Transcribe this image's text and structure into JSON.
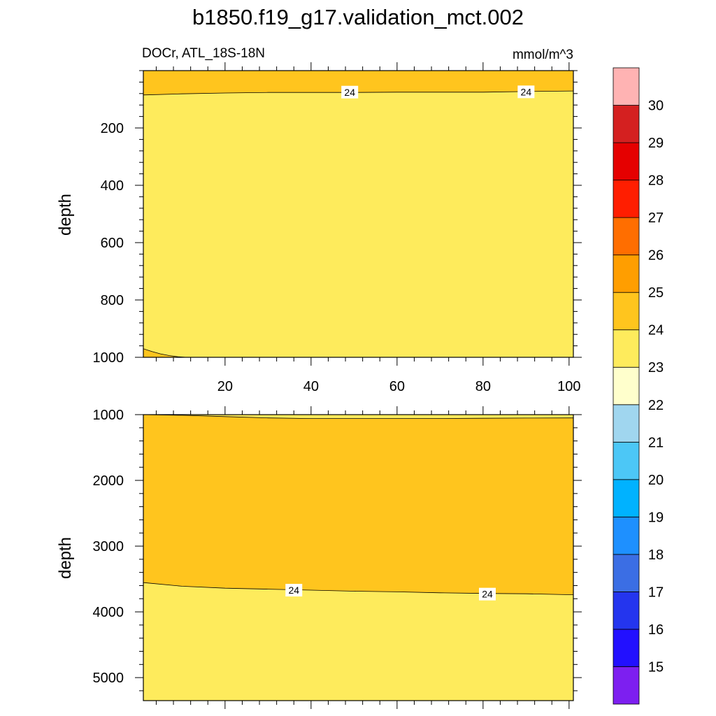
{
  "title": "b1850.f19_g17.validation_mct.002",
  "variable_label": "DOCr, ATL_18S-18N",
  "units_label": "mmol/m^3",
  "ylabel": "depth",
  "colors": {
    "fill_22_23": "#FFFFCC",
    "fill_23_24": "#FEEB5C",
    "fill_24_25": "#FFC51E",
    "contour_line": "#000000"
  },
  "chart_data": [
    {
      "type": "contour",
      "panel": "upper",
      "xlim": [
        1,
        101
      ],
      "ylim": [
        1000,
        0
      ],
      "xticks": [
        20,
        40,
        60,
        80,
        100
      ],
      "yticks": [
        200,
        400,
        600,
        800,
        1000
      ],
      "ylabel": "depth",
      "contour_lines": [
        {
          "level": 24,
          "x": [
            1,
            10,
            20,
            30,
            40,
            50,
            60,
            70,
            80,
            90,
            101
          ],
          "depth": [
            85,
            81,
            78,
            76,
            76,
            76,
            75,
            75,
            75,
            73,
            71
          ]
        },
        {
          "level": 24,
          "x": [
            1,
            3,
            5,
            7,
            9,
            11
          ],
          "depth": [
            970,
            980,
            988,
            994,
            998,
            1000
          ]
        }
      ],
      "contour_labels": [
        {
          "text": "24",
          "x": 49,
          "depth": 75
        },
        {
          "text": "24",
          "x": 90,
          "depth": 74
        }
      ]
    },
    {
      "type": "contour",
      "panel": "lower",
      "xlim": [
        1,
        101
      ],
      "ylim": [
        5350,
        1000
      ],
      "yticks": [
        1000,
        2000,
        3000,
        4000,
        5000
      ],
      "ylabel": "depth",
      "contour_lines": [
        {
          "level": 24,
          "x": [
            1,
            10,
            20,
            30,
            40,
            50,
            60,
            70,
            80,
            90,
            101
          ],
          "depth": [
            1000,
            1010,
            1030,
            1050,
            1060,
            1060,
            1060,
            1058,
            1055,
            1052,
            1050
          ]
        },
        {
          "level": 24,
          "x": [
            1,
            10,
            20,
            30,
            40,
            50,
            60,
            70,
            80,
            90,
            101
          ],
          "depth": [
            3555,
            3610,
            3640,
            3655,
            3670,
            3685,
            3695,
            3710,
            3720,
            3725,
            3740
          ]
        }
      ],
      "contour_labels": [
        {
          "text": "24",
          "x": 36,
          "depth": 3670
        },
        {
          "text": "24",
          "x": 81,
          "depth": 3730
        }
      ]
    }
  ],
  "colorbar": {
    "levels": [
      "15",
      "16",
      "17",
      "18",
      "19",
      "20",
      "21",
      "22",
      "23",
      "24",
      "25",
      "26",
      "27",
      "28",
      "29",
      "30"
    ],
    "colors": [
      "#7D1FF0",
      "#2210FF",
      "#2435EE",
      "#3B6EE4",
      "#1E90FF",
      "#00B2FF",
      "#4CC7F6",
      "#A0D6EF",
      "#FFFFCC",
      "#FEEB5C",
      "#FFC51E",
      "#FF9E00",
      "#FF6E00",
      "#FF1E00",
      "#E50000",
      "#D42020",
      "#FFB3B3"
    ]
  }
}
